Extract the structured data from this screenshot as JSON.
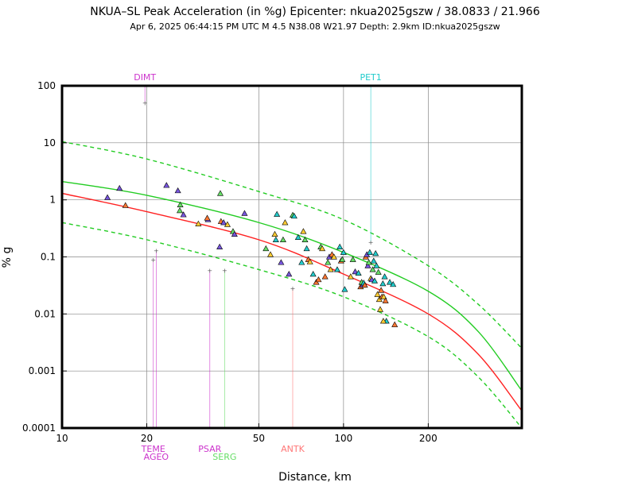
{
  "chart_data": {
    "type": "scatter",
    "title": "NKUA–SL Peak Acceleration (in %g) Epicenter: nkua2025gszw / 38.0833 / 21.966",
    "subtitle": "Apr  6, 2025 06:44:15 PM UTC   M 4.5   N38.08 W21.97   Depth: 2.9km   ID:nkua2025gszw",
    "xlabel": "Distance, km",
    "ylabel": "% g",
    "xscale": "log",
    "yscale": "log",
    "xlim": [
      10,
      430
    ],
    "ylim": [
      0.0001,
      100
    ],
    "x_ticks": [
      {
        "v": 10,
        "label": "10"
      },
      {
        "v": 20,
        "label": "20"
      },
      {
        "v": 50,
        "label": "50"
      },
      {
        "v": 100,
        "label": "100"
      },
      {
        "v": 200,
        "label": "200"
      }
    ],
    "y_ticks": [
      {
        "v": 100,
        "label": "100"
      },
      {
        "v": 10,
        "label": "10"
      },
      {
        "v": 1,
        "label": "1"
      },
      {
        "v": 0.1,
        "label": "0.1"
      },
      {
        "v": 0.01,
        "label": "0.01"
      },
      {
        "v": 0.001,
        "label": "0.001"
      },
      {
        "v": 0.0001,
        "label": "0.0001"
      }
    ],
    "grid_x": [
      20,
      50,
      100,
      200
    ],
    "grid_y": [
      10,
      1,
      0.1,
      0.01,
      0.001
    ],
    "curves": [
      {
        "name": "median",
        "color": "#22cc22",
        "dashed": false,
        "points": [
          [
            10,
            2.1
          ],
          [
            20,
            1.2
          ],
          [
            50,
            0.4
          ],
          [
            100,
            0.12
          ],
          [
            200,
            0.025
          ],
          [
            300,
            0.005
          ],
          [
            430,
            0.00045
          ]
        ]
      },
      {
        "name": "median-plus",
        "color": "#22cc22",
        "dashed": true,
        "points": [
          [
            10,
            10.5
          ],
          [
            20,
            5.2
          ],
          [
            50,
            1.4
          ],
          [
            100,
            0.45
          ],
          [
            200,
            0.07
          ],
          [
            300,
            0.015
          ],
          [
            430,
            0.0025
          ]
        ]
      },
      {
        "name": "median-minus",
        "color": "#22cc22",
        "dashed": true,
        "points": [
          [
            10,
            0.4
          ],
          [
            20,
            0.2
          ],
          [
            50,
            0.06
          ],
          [
            100,
            0.02
          ],
          [
            200,
            0.004
          ],
          [
            300,
            0.0008
          ],
          [
            430,
            0.0001
          ]
        ]
      },
      {
        "name": "regression",
        "color": "#ff2222",
        "dashed": false,
        "points": [
          [
            10,
            1.3
          ],
          [
            20,
            0.62
          ],
          [
            50,
            0.2
          ],
          [
            100,
            0.05
          ],
          [
            200,
            0.01
          ],
          [
            300,
            0.002
          ],
          [
            430,
            0.0002
          ]
        ]
      }
    ],
    "stations": [
      {
        "name": "DIMT",
        "x": 19.7,
        "y": 50,
        "color": "#cc33cc",
        "label_pos": "top"
      },
      {
        "name": "PET1",
        "x": 125,
        "y": 0.18,
        "color": "#22cccc",
        "label_pos": "top"
      },
      {
        "name": "TEME",
        "x": 21.1,
        "y": 0.09,
        "color": "#cc33cc",
        "label_pos": "bottom"
      },
      {
        "name": "AGEO",
        "x": 21.6,
        "y": 0.13,
        "color": "#cc33cc",
        "label_pos": "bottom2"
      },
      {
        "name": "PSAR",
        "x": 33.5,
        "y": 0.058,
        "color": "#cc33cc",
        "label_pos": "bottom"
      },
      {
        "name": "SERG",
        "x": 37.8,
        "y": 0.058,
        "color": "#66dd66",
        "label_pos": "bottom2"
      },
      {
        "name": "ANTK",
        "x": 66,
        "y": 0.028,
        "color": "#ff7777",
        "label_pos": "bottom"
      }
    ],
    "points": [
      {
        "x": 14.5,
        "y": 1.1,
        "c": "#7755dd"
      },
      {
        "x": 16,
        "y": 1.6,
        "c": "#7755dd"
      },
      {
        "x": 16.8,
        "y": 0.8,
        "c": "#ff7733"
      },
      {
        "x": 23.5,
        "y": 1.8,
        "c": "#7755dd"
      },
      {
        "x": 25.8,
        "y": 1.45,
        "c": "#7755dd"
      },
      {
        "x": 26.3,
        "y": 0.82,
        "c": "#66dd66"
      },
      {
        "x": 27,
        "y": 0.55,
        "c": "#7755dd"
      },
      {
        "x": 26.2,
        "y": 0.65,
        "c": "#66dd66"
      },
      {
        "x": 30.5,
        "y": 0.38,
        "c": "#ffcc33"
      },
      {
        "x": 33,
        "y": 0.45,
        "c": "#7755dd"
      },
      {
        "x": 32.8,
        "y": 0.48,
        "c": "#ff7733"
      },
      {
        "x": 36.5,
        "y": 1.3,
        "c": "#66dd66"
      },
      {
        "x": 36.7,
        "y": 0.42,
        "c": "#ff7733"
      },
      {
        "x": 37.5,
        "y": 0.4,
        "c": "#7755dd"
      },
      {
        "x": 38.7,
        "y": 0.37,
        "c": "#ffcc33"
      },
      {
        "x": 40.5,
        "y": 0.28,
        "c": "#66dd66"
      },
      {
        "x": 41,
        "y": 0.25,
        "c": "#7755dd"
      },
      {
        "x": 36.3,
        "y": 0.15,
        "c": "#7755dd"
      },
      {
        "x": 44.5,
        "y": 0.58,
        "c": "#7755dd"
      },
      {
        "x": 53,
        "y": 0.14,
        "c": "#66dd66"
      },
      {
        "x": 55,
        "y": 0.11,
        "c": "#ffcc33"
      },
      {
        "x": 57,
        "y": 0.25,
        "c": "#ffcc33"
      },
      {
        "x": 58,
        "y": 0.56,
        "c": "#22cccc"
      },
      {
        "x": 57.5,
        "y": 0.2,
        "c": "#22cccc"
      },
      {
        "x": 60,
        "y": 0.08,
        "c": "#7755dd"
      },
      {
        "x": 61,
        "y": 0.2,
        "c": "#66dd66"
      },
      {
        "x": 62,
        "y": 0.4,
        "c": "#ffcc33"
      },
      {
        "x": 64,
        "y": 0.05,
        "c": "#7755dd"
      },
      {
        "x": 66,
        "y": 0.54,
        "c": "#66dd66"
      },
      {
        "x": 66.8,
        "y": 0.52,
        "c": "#22cccc"
      },
      {
        "x": 69,
        "y": 0.22,
        "c": "#22cccc"
      },
      {
        "x": 71,
        "y": 0.08,
        "c": "#22cccc"
      },
      {
        "x": 72,
        "y": 0.28,
        "c": "#ffcc33"
      },
      {
        "x": 73,
        "y": 0.2,
        "c": "#66dd66"
      },
      {
        "x": 74,
        "y": 0.14,
        "c": "#22cccc"
      },
      {
        "x": 75,
        "y": 0.09,
        "c": "#ff7733"
      },
      {
        "x": 76,
        "y": 0.082,
        "c": "#ffcc33"
      },
      {
        "x": 78,
        "y": 0.05,
        "c": "#22cccc"
      },
      {
        "x": 80,
        "y": 0.036,
        "c": "#ff7733"
      },
      {
        "x": 81.5,
        "y": 0.04,
        "c": "#ff7733"
      },
      {
        "x": 83,
        "y": 0.15,
        "c": "#66dd66"
      },
      {
        "x": 84,
        "y": 0.14,
        "c": "#ffcc33"
      },
      {
        "x": 86,
        "y": 0.045,
        "c": "#ff7733"
      },
      {
        "x": 88,
        "y": 0.08,
        "c": "#66dd66"
      },
      {
        "x": 89,
        "y": 0.1,
        "c": "#7755dd"
      },
      {
        "x": 90,
        "y": 0.06,
        "c": "#ffcc33"
      },
      {
        "x": 91,
        "y": 0.11,
        "c": "#ff7733"
      },
      {
        "x": 92.5,
        "y": 0.1,
        "c": "#ffcc33"
      },
      {
        "x": 95,
        "y": 0.06,
        "c": "#22cccc"
      },
      {
        "x": 97,
        "y": 0.15,
        "c": "#22cccc"
      },
      {
        "x": 98,
        "y": 0.085,
        "c": "#ff7733"
      },
      {
        "x": 99,
        "y": 0.09,
        "c": "#66dd66"
      },
      {
        "x": 100,
        "y": 0.12,
        "c": "#22cccc"
      },
      {
        "x": 101,
        "y": 0.027,
        "c": "#22cccc"
      },
      {
        "x": 106,
        "y": 0.045,
        "c": "#ffcc33"
      },
      {
        "x": 108,
        "y": 0.09,
        "c": "#66dd66"
      },
      {
        "x": 110,
        "y": 0.055,
        "c": "#7755dd"
      },
      {
        "x": 113,
        "y": 0.052,
        "c": "#22cccc"
      },
      {
        "x": 115,
        "y": 0.03,
        "c": "#ff7733"
      },
      {
        "x": 116,
        "y": 0.036,
        "c": "#66dd66"
      },
      {
        "x": 117,
        "y": 0.032,
        "c": "#7755dd"
      },
      {
        "x": 118,
        "y": 0.035,
        "c": "#22cccc"
      },
      {
        "x": 119,
        "y": 0.032,
        "c": "#ff7733"
      },
      {
        "x": 120,
        "y": 0.1,
        "c": "#ff7733"
      },
      {
        "x": 121,
        "y": 0.11,
        "c": "#7755dd"
      },
      {
        "x": 122,
        "y": 0.07,
        "c": "#7755dd"
      },
      {
        "x": 123,
        "y": 0.08,
        "c": "#66dd66"
      },
      {
        "x": 124,
        "y": 0.12,
        "c": "#22cccc"
      },
      {
        "x": 125,
        "y": 0.042,
        "c": "#ffcc33"
      },
      {
        "x": 126,
        "y": 0.04,
        "c": "#7755dd"
      },
      {
        "x": 127,
        "y": 0.06,
        "c": "#66dd66"
      },
      {
        "x": 128,
        "y": 0.085,
        "c": "#22cccc"
      },
      {
        "x": 129,
        "y": 0.038,
        "c": "#22cccc"
      },
      {
        "x": 130,
        "y": 0.115,
        "c": "#22cccc"
      },
      {
        "x": 131,
        "y": 0.07,
        "c": "#22cccc"
      },
      {
        "x": 132,
        "y": 0.022,
        "c": "#ffcc33"
      },
      {
        "x": 133,
        "y": 0.054,
        "c": "#66dd66"
      },
      {
        "x": 134,
        "y": 0.018,
        "c": "#ffcc33"
      },
      {
        "x": 135,
        "y": 0.012,
        "c": "#ffcc33"
      },
      {
        "x": 136,
        "y": 0.026,
        "c": "#ff7733"
      },
      {
        "x": 137,
        "y": 0.02,
        "c": "#ff7733"
      },
      {
        "x": 138,
        "y": 0.034,
        "c": "#22cccc"
      },
      {
        "x": 139,
        "y": 0.02,
        "c": "#ffcc33"
      },
      {
        "x": 140,
        "y": 0.045,
        "c": "#22cccc"
      },
      {
        "x": 141,
        "y": 0.017,
        "c": "#ff7733"
      },
      {
        "x": 142,
        "y": 0.0075,
        "c": "#22cccc"
      },
      {
        "x": 138.5,
        "y": 0.0075,
        "c": "#ffcc33"
      },
      {
        "x": 146,
        "y": 0.036,
        "c": "#22cccc"
      },
      {
        "x": 150,
        "y": 0.033,
        "c": "#22cccc"
      },
      {
        "x": 152,
        "y": 0.0065,
        "c": "#ff7733"
      }
    ]
  }
}
